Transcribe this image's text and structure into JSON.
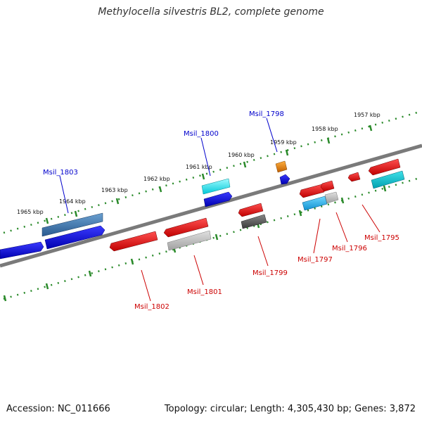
{
  "title": "Methylocella silvestris BL2, complete genome",
  "footer": {
    "accession": "Accession: NC_011666",
    "summary": "Topology: circular; Length: 4,305,430 bp; Genes: 3,872"
  },
  "colors": {
    "backbone": "#7a7a7a",
    "tick": "#2a8a2a",
    "forward_label": "#0000cc",
    "reverse_label": "#cc0000"
  },
  "kbp_labels": [
    "1957 kbp",
    "1958 kbp",
    "1959 kbp",
    "1960 kbp",
    "1961 kbp",
    "1962 kbp",
    "1963 kbp",
    "1964 kbp",
    "1965 kbp"
  ],
  "gene_labels": {
    "forward": [
      "Msil_1803",
      "Msil_1800",
      "Msil_1798"
    ],
    "reverse": [
      "Msil_1802",
      "Msil_1801",
      "Msil_1799",
      "Msil_1797",
      "Msil_1796",
      "Msil_1795"
    ]
  }
}
